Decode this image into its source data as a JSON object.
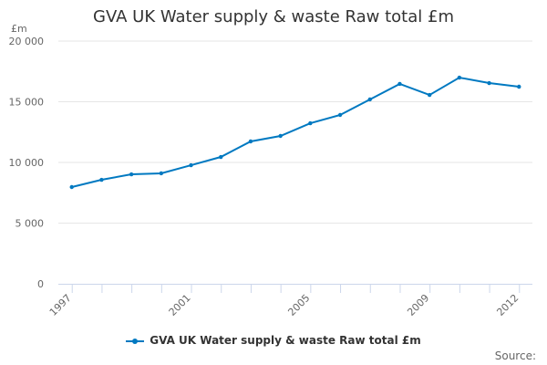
{
  "chart_data": {
    "type": "line",
    "title": "GVA UK Water supply & waste Raw total £m",
    "ylabel": "£m",
    "xlabel": "",
    "ylim": [
      0,
      20000
    ],
    "yticks": [
      0,
      5000,
      10000,
      15000,
      20000
    ],
    "ytick_labels": [
      "0",
      "5 000",
      "10 000",
      "15 000",
      "20 000"
    ],
    "xtick_labels": [
      "1997",
      "2001",
      "2005",
      "2009",
      "2012"
    ],
    "grid": true,
    "legend_position": "bottom",
    "x": [
      1997,
      1998,
      1999,
      2000,
      2001,
      2002,
      2003,
      2004,
      2005,
      2006,
      2007,
      2008,
      2009,
      2010,
      2011,
      2012
    ],
    "series": [
      {
        "name": "GVA UK Water supply & waste Raw total £m",
        "color": "#0079c1",
        "values": [
          7970,
          8570,
          9020,
          9100,
          9770,
          10450,
          11730,
          12180,
          13230,
          13910,
          15190,
          16470,
          15560,
          16990,
          16540,
          16240
        ]
      }
    ]
  },
  "source_label": "Source:"
}
